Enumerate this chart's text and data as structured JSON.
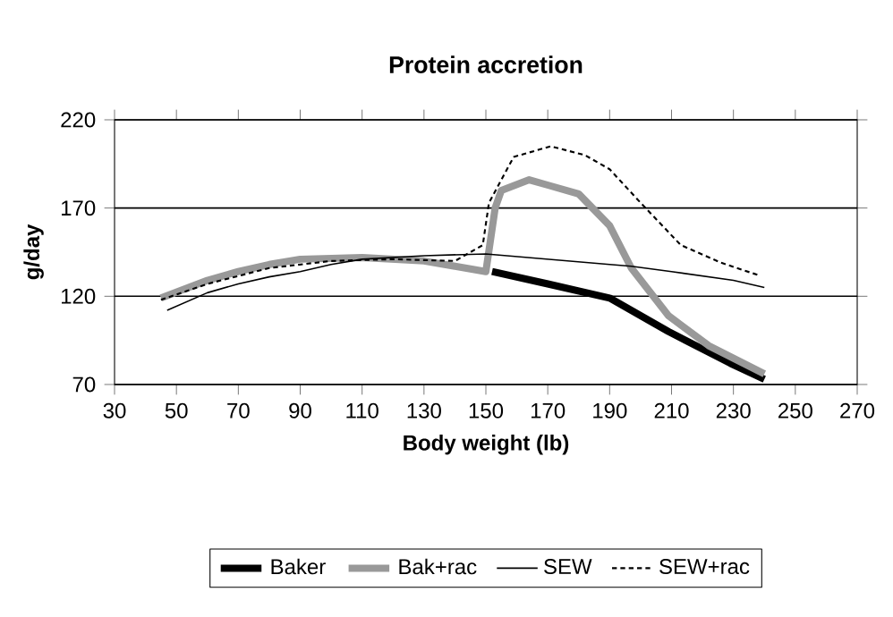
{
  "chart_data": {
    "type": "line",
    "title": "Protein accretion",
    "xlabel": "Body weight (lb)",
    "ylabel": "g/day",
    "xlim": [
      30,
      270
    ],
    "xticks": [
      30,
      50,
      70,
      90,
      110,
      130,
      150,
      170,
      190,
      210,
      230,
      250,
      270
    ],
    "ylim": [
      70,
      220
    ],
    "yticks": [
      70,
      120,
      170,
      220
    ],
    "grid": "y",
    "legend": "bottom",
    "marker": "none",
    "series": [
      {
        "name": "Baker",
        "color": "#000000",
        "line_style": "solid",
        "x": [
          152,
          170,
          190,
          209,
          229,
          240
        ],
        "values": [
          134,
          127,
          119,
          100,
          82,
          73
        ]
      },
      {
        "name": "Bak+rac",
        "color": "#999999",
        "line_style": "solid",
        "x": [
          45,
          60,
          70,
          80,
          90,
          110,
          130,
          140,
          150,
          153,
          155,
          164,
          170,
          180,
          190,
          197,
          209,
          222,
          240
        ],
        "values": [
          119,
          129,
          134,
          138,
          141,
          142,
          140,
          137,
          134,
          170,
          180,
          186,
          183,
          178,
          160,
          136,
          109,
          92,
          76
        ]
      },
      {
        "name": "SEW",
        "color": "#000000",
        "line_style": "solid",
        "x": [
          47,
          60,
          70,
          80,
          90,
          100,
          110,
          130,
          150,
          170,
          190,
          197,
          210,
          230,
          240
        ],
        "values": [
          112,
          122,
          127,
          131,
          134,
          138,
          141,
          143,
          144,
          141,
          138,
          137,
          134,
          129,
          125
        ]
      },
      {
        "name": "SEW+rac",
        "color": "#000000",
        "line_style": "dashed",
        "x": [
          45,
          60,
          80,
          100,
          120,
          140,
          149,
          151,
          159,
          171,
          182,
          190,
          200,
          213,
          226,
          238
        ],
        "values": [
          118,
          127,
          136,
          140,
          141,
          140,
          149,
          173,
          199,
          205,
          200,
          192,
          173,
          149,
          139,
          132
        ]
      }
    ]
  }
}
